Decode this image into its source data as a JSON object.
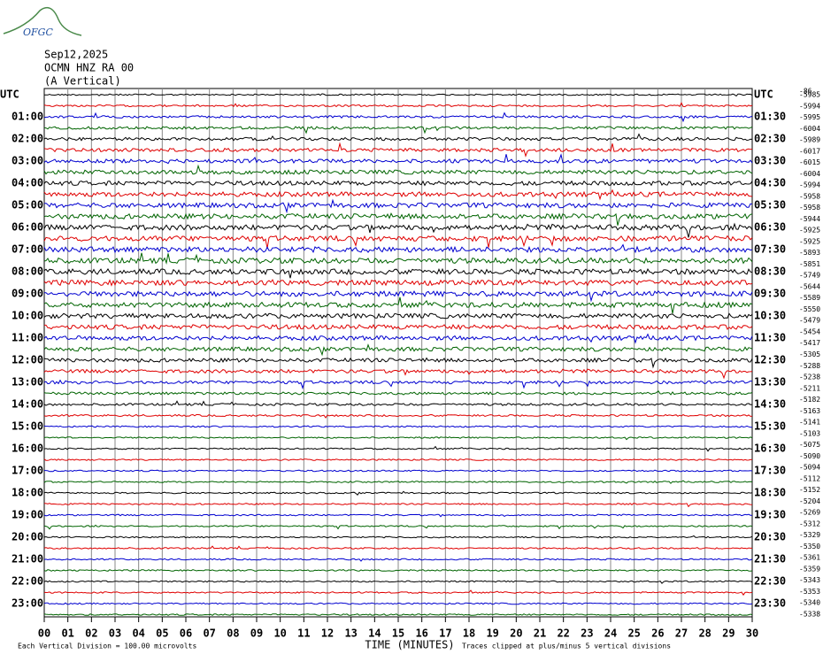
{
  "logo": "OFGC",
  "header": {
    "date": "Sep12,2025",
    "station": "OCMN HNZ RA 00",
    "component": "(A Vertical)"
  },
  "left_labels": [
    "UTC",
    "01:00",
    "02:00",
    "03:00",
    "04:00",
    "05:00",
    "06:00",
    "07:00",
    "08:00",
    "09:00",
    "10:00",
    "11:00",
    "12:00",
    "13:00",
    "14:00",
    "15:00",
    "16:00",
    "17:00",
    "18:00",
    "19:00",
    "20:00",
    "21:00",
    "22:00",
    "23:00"
  ],
  "right_labels": [
    "UTC",
    "01:30",
    "02:30",
    "03:30",
    "04:30",
    "05:30",
    "06:30",
    "07:30",
    "08:30",
    "09:30",
    "10:30",
    "11:30",
    "12:30",
    "13:30",
    "14:30",
    "15:30",
    "16:30",
    "17:30",
    "18:30",
    "19:30",
    "20:30",
    "21:30",
    "22:30",
    "23:30"
  ],
  "offsets": {
    "top": "-86",
    "values": [
      "-5985",
      "-5994",
      "-5995",
      "-6004",
      "-5989",
      "-6017",
      "-6015",
      "-6004",
      "-5994",
      "-5958",
      "-5958",
      "-5944",
      "-5925",
      "-5925",
      "-5893",
      "-5851",
      "-5749",
      "-5644",
      "-5589",
      "-5550",
      "-5479",
      "-5454",
      "-5417",
      "-5305",
      "-5288",
      "-5238",
      "-5211",
      "-5182",
      "-5163",
      "-5141",
      "-5103",
      "-5075",
      "-5090",
      "-5094",
      "-5112",
      "-5152",
      "-5204",
      "-5269",
      "-5312",
      "-5329",
      "-5350",
      "-5361",
      "-5359",
      "-5343",
      "-5353",
      "-5340",
      "-5338"
    ]
  },
  "x_axis": {
    "ticks": [
      "00",
      "01",
      "02",
      "03",
      "04",
      "05",
      "06",
      "07",
      "08",
      "09",
      "10",
      "11",
      "12",
      "13",
      "14",
      "15",
      "16",
      "17",
      "18",
      "19",
      "20",
      "21",
      "22",
      "23",
      "24",
      "25",
      "26",
      "27",
      "28",
      "29",
      "30"
    ],
    "title": "TIME (MINUTES)"
  },
  "footer": {
    "scale": "Each Vertical Division =  100.00 microvolts",
    "note": "Traces clipped at plus/minus 5 vertical divisions"
  },
  "trace_colors": [
    "#000000",
    "#e00000",
    "#0000d0",
    "#006400"
  ]
}
